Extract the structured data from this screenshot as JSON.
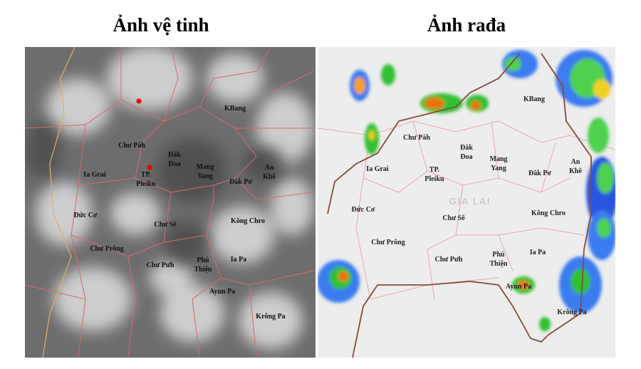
{
  "titles": {
    "satellite": "Ảnh vệ tinh",
    "radar": "Ảnh rađa"
  },
  "satellite_map": {
    "labels": [
      [
        "KBang"
      ],
      [
        "Chư Păh"
      ],
      [
        "Đăk",
        "Đoa"
      ],
      [
        "Ia Grai"
      ],
      [
        "TP.",
        "Pleiku"
      ],
      [
        "Mang",
        "Yang"
      ],
      [
        "An",
        "Khê"
      ],
      [
        "Đăk Pơ"
      ],
      [
        "Đức Cơ"
      ],
      [
        "Chư Sê"
      ],
      [
        "Kông Chro"
      ],
      [
        "Chư Prông"
      ],
      [
        "Chư Pưh"
      ],
      [
        "Phú",
        "Thiện"
      ],
      [
        "Ia Pa"
      ],
      [
        "Ayun Pa"
      ],
      [
        "Krông Pa"
      ]
    ]
  },
  "radar_map": {
    "region": "GIA LAI",
    "labels": [
      [
        "KBang"
      ],
      [
        "Chư Păh"
      ],
      [
        "Đăk",
        "Đoa"
      ],
      [
        "Ia Grai"
      ],
      [
        "TP.",
        "Pleiku"
      ],
      [
        "Mang",
        "Yang"
      ],
      [
        "An",
        "Khê"
      ],
      [
        "Đăk Pơ"
      ],
      [
        "Đức Cơ"
      ],
      [
        "Chư Sê"
      ],
      [
        "Kông Chro"
      ],
      [
        "Chư Prông"
      ],
      [
        "Chư Pưh"
      ],
      [
        "Phú",
        "Thiện"
      ],
      [
        "Ia Pa"
      ],
      [
        "Ayun Pa"
      ],
      [
        "Krông Pa"
      ]
    ]
  }
}
